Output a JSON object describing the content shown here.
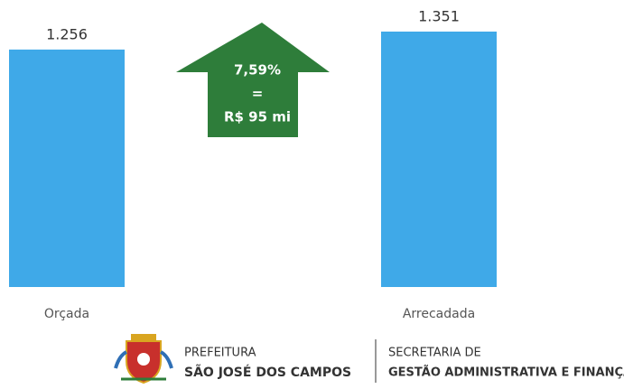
{
  "chart_data": {
    "type": "bar",
    "categories": [
      "Orçada",
      "Arrecadada"
    ],
    "values": [
      1.256,
      1.351
    ],
    "color": "#3fa9e8",
    "annotation": {
      "lines": [
        "7,59%",
        "=",
        "R$ 95 mi"
      ],
      "color": "#2e7d3a"
    }
  },
  "footer": {
    "left": [
      "PREFEITURA",
      "SÃO JOSÉ DOS CAMPOS"
    ],
    "right": [
      "SECRETARIA DE",
      "GESTÃO ADMINISTRATIVA E FINANÇAS"
    ]
  }
}
